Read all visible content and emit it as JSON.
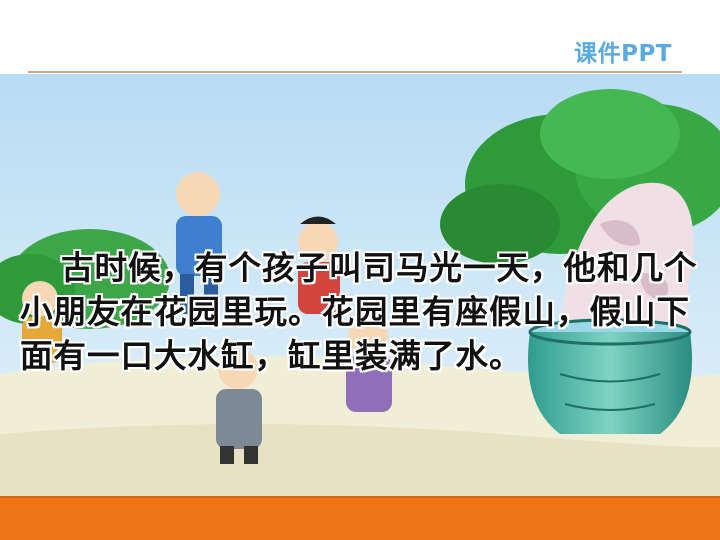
{
  "header": {
    "brand": "课件PPT"
  },
  "story": {
    "paragraph": "古时候，有个孩子叫司马光一天，他和几个小朋友在花园里玩。花园里有座假山，假山下面有一口大水缸，缸里装满了水。"
  },
  "illustration": {
    "description_icons": [
      "sky",
      "tree",
      "rockery",
      "water-vat",
      "children"
    ],
    "colors": {
      "sky": "#cfe8f7",
      "ground": "#f2f0d8",
      "tree": "#2e9a3a",
      "vat": "#3aa89a",
      "accent": "#ef7413"
    }
  }
}
